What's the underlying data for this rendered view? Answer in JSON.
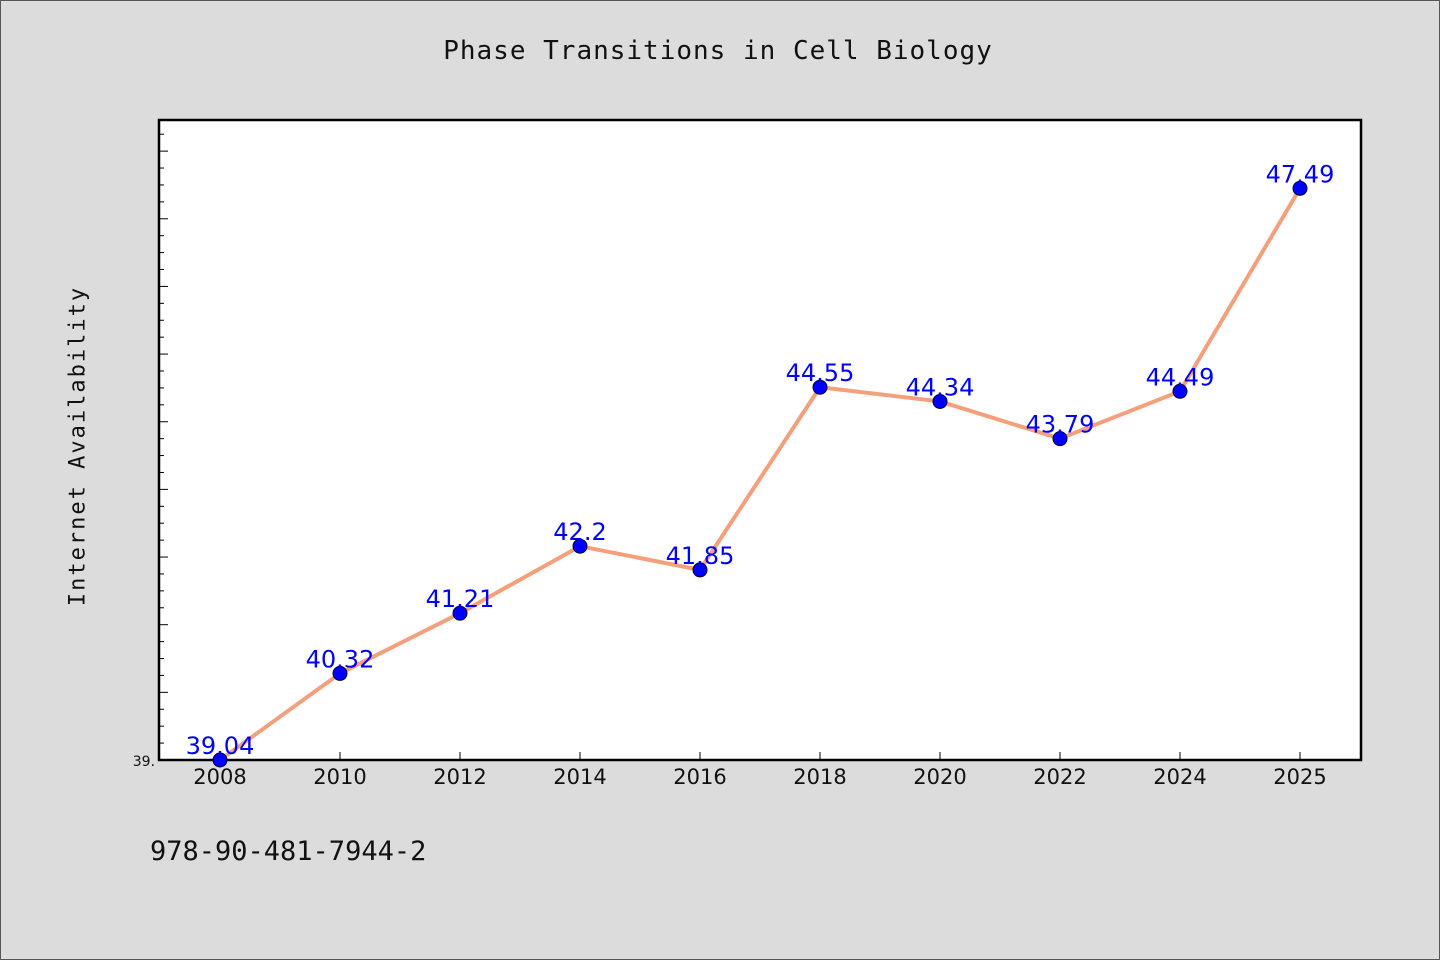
{
  "chart_data": {
    "type": "line",
    "title": "Phase Transitions in Cell Biology",
    "xlabel": "",
    "ylabel": "Internet Availability",
    "x": [
      "2008",
      "2010",
      "2012",
      "2014",
      "2016",
      "2018",
      "2020",
      "2022",
      "2024",
      "2025"
    ],
    "series": [
      {
        "values": [
          39.04,
          40.32,
          41.21,
          42.2,
          41.85,
          44.55,
          44.34,
          43.79,
          44.49,
          47.49
        ],
        "labels": [
          "39.04",
          "40.32",
          "41.21",
          "42.2",
          "41.85",
          "44.55",
          "44.34",
          "43.79",
          "44.49",
          "47.49"
        ],
        "line_color": "#f4a07c",
        "marker_color": "#0000ff"
      }
    ],
    "ylim": [
      39.04,
      48.5
    ],
    "y_tick_labels": [
      "39."
    ],
    "grid": false,
    "legend": "none",
    "label_color": "#0000ff"
  },
  "footer": {
    "isbn": "978-90-481-7944-2"
  }
}
